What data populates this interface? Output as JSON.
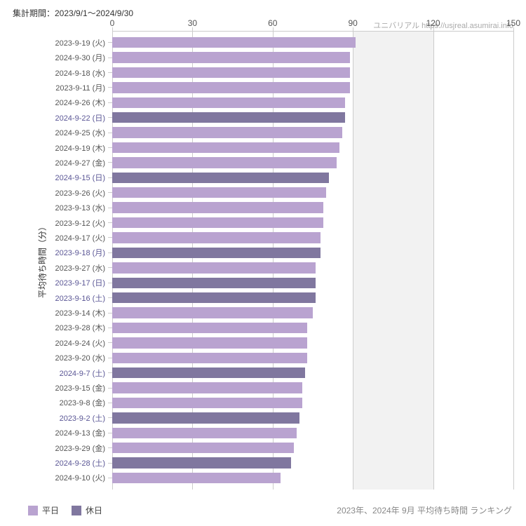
{
  "header": {
    "period": "集計期間：2023/9/1～2024/9/30"
  },
  "attribution": "ユニバリアル  https://usjreal.asumirai.info",
  "chart": {
    "type": "bar",
    "y_axis_label": "平均待ち時間（分）",
    "x_axis": {
      "min": 0,
      "max": 150,
      "ticks": [
        0,
        30,
        60,
        90,
        120,
        150
      ]
    },
    "shaded": {
      "from": 90,
      "to": 120
    },
    "colors": {
      "weekday_bar": "#b9a3d0",
      "holiday_bar": "#80779f",
      "holiday_label": "#5a5695",
      "grid": "#cccccc",
      "shade": "#f2f2f2",
      "background": "#ffffff"
    },
    "bars": [
      {
        "label": "2023-9-19 (火)",
        "value": 91,
        "holiday": false
      },
      {
        "label": "2024-9-30 (月)",
        "value": 89,
        "holiday": false
      },
      {
        "label": "2024-9-18 (水)",
        "value": 89,
        "holiday": false
      },
      {
        "label": "2023-9-11 (月)",
        "value": 89,
        "holiday": false
      },
      {
        "label": "2024-9-26 (木)",
        "value": 87,
        "holiday": false
      },
      {
        "label": "2024-9-22 (日)",
        "value": 87,
        "holiday": true
      },
      {
        "label": "2024-9-25 (水)",
        "value": 86,
        "holiday": false
      },
      {
        "label": "2024-9-19 (木)",
        "value": 85,
        "holiday": false
      },
      {
        "label": "2024-9-27 (金)",
        "value": 84,
        "holiday": false
      },
      {
        "label": "2024-9-15 (日)",
        "value": 81,
        "holiday": true
      },
      {
        "label": "2023-9-26 (火)",
        "value": 80,
        "holiday": false
      },
      {
        "label": "2023-9-13 (水)",
        "value": 79,
        "holiday": false
      },
      {
        "label": "2023-9-12 (火)",
        "value": 79,
        "holiday": false
      },
      {
        "label": "2024-9-17 (火)",
        "value": 78,
        "holiday": false
      },
      {
        "label": "2023-9-18 (月)",
        "value": 78,
        "holiday": true
      },
      {
        "label": "2023-9-27 (水)",
        "value": 76,
        "holiday": false
      },
      {
        "label": "2023-9-17 (日)",
        "value": 76,
        "holiday": true
      },
      {
        "label": "2023-9-16 (土)",
        "value": 76,
        "holiday": true
      },
      {
        "label": "2023-9-14 (木)",
        "value": 75,
        "holiday": false
      },
      {
        "label": "2023-9-28 (木)",
        "value": 73,
        "holiday": false
      },
      {
        "label": "2024-9-24 (火)",
        "value": 73,
        "holiday": false
      },
      {
        "label": "2023-9-20 (水)",
        "value": 73,
        "holiday": false
      },
      {
        "label": "2024-9-7 (土)",
        "value": 72,
        "holiday": true
      },
      {
        "label": "2023-9-15 (金)",
        "value": 71,
        "holiday": false
      },
      {
        "label": "2023-9-8 (金)",
        "value": 71,
        "holiday": false
      },
      {
        "label": "2023-9-2 (土)",
        "value": 70,
        "holiday": true
      },
      {
        "label": "2024-9-13 (金)",
        "value": 69,
        "holiday": false
      },
      {
        "label": "2023-9-29 (金)",
        "value": 68,
        "holiday": false
      },
      {
        "label": "2024-9-28 (土)",
        "value": 67,
        "holiday": true
      },
      {
        "label": "2024-9-10 (火)",
        "value": 63,
        "holiday": false
      }
    ]
  },
  "legend": {
    "weekday": "平日",
    "holiday": "休日"
  },
  "footer": {
    "title": "2023年、2024年 9月 平均待ち時間 ランキング"
  }
}
